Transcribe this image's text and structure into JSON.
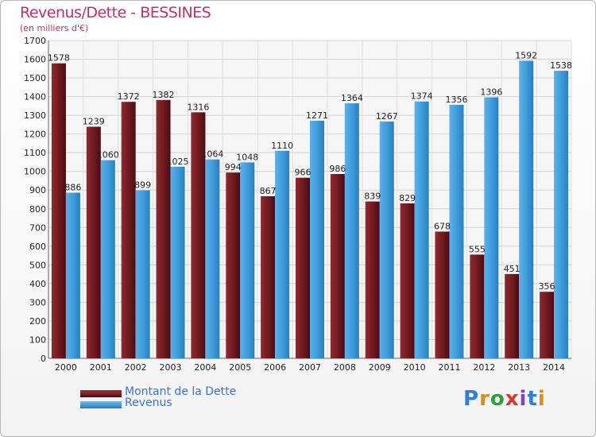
{
  "title": "Revenus/Dette - BESSINES",
  "subtitle": "(en milliers d'€)",
  "logo": {
    "text": "Proxiti",
    "letter_colors": [
      "#2e7fd6",
      "#e08a1a",
      "#2e9e3e",
      "#d63a2e",
      "#8a3fbf",
      "#2e7fd6",
      "#e08a1a"
    ]
  },
  "colors": {
    "dette": "#7a1c22",
    "revenus": "#3d9ad9",
    "title": "#c0306a",
    "legend_text": "#3b6fe0"
  },
  "chart_data": {
    "type": "bar",
    "title": "Revenus/Dette - BESSINES",
    "subtitle": "(en milliers d'€)",
    "categories": [
      "2000",
      "2001",
      "2002",
      "2003",
      "2004",
      "2005",
      "2006",
      "2007",
      "2008",
      "2009",
      "2010",
      "2011",
      "2012",
      "2013",
      "2014"
    ],
    "series": [
      {
        "name": "Montant de la Dette",
        "values": [
          1578,
          1239,
          1372,
          1382,
          1316,
          994,
          867,
          966,
          986,
          839,
          829,
          678,
          555,
          451,
          356
        ]
      },
      {
        "name": "Revenus",
        "values": [
          886,
          1060,
          899,
          1025,
          1064,
          1048,
          1110,
          1271,
          1364,
          1267,
          1374,
          1356,
          1396,
          1592,
          1538
        ]
      }
    ],
    "ylim": [
      0,
      1700
    ],
    "yticks": [
      0,
      100,
      200,
      300,
      400,
      500,
      600,
      700,
      800,
      900,
      1000,
      1100,
      1200,
      1300,
      1400,
      1500,
      1600,
      1700
    ],
    "grid": true,
    "legend_position": "bottom-left",
    "data_labels": true
  }
}
